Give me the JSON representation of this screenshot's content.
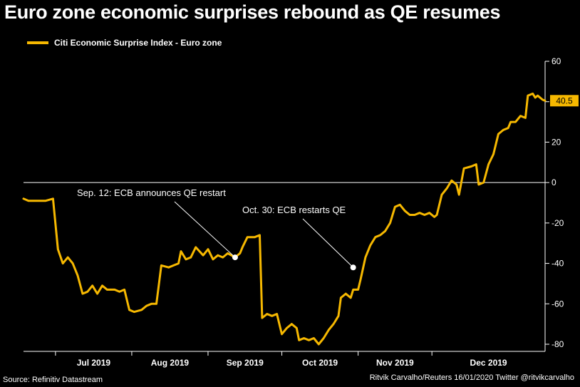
{
  "header": {
    "title": "Euro zone economic surprises rebound as QE resumes"
  },
  "legend": {
    "label": "Citi Economic Surprise Index - Euro zone"
  },
  "footer": {
    "source": "Source: Refinitiv Datastream",
    "credit": "Ritvik Carvalho/Reuters 16/01/2020 Twitter @ritvikcarvalho"
  },
  "colors": {
    "background": "#000000",
    "line": "#f6b800",
    "text": "#ffffff",
    "zero_line": "#ffffff"
  },
  "chart_data": {
    "type": "line",
    "title": "Euro zone economic surprises rebound as QE resumes",
    "xlabel": "",
    "ylabel": "",
    "ylim": [
      -80,
      60
    ],
    "yticks": [
      60,
      40,
      20,
      0,
      -20,
      -40,
      -60,
      -80
    ],
    "y_axis_side": "right",
    "grid": false,
    "reference_line": 0,
    "legend_position": "top-left",
    "xlim": [
      "2019-06-18",
      "2020-01-16"
    ],
    "xticks": [
      {
        "label": "Jul 2019",
        "date": "2019-07-01"
      },
      {
        "label": "Aug 2019",
        "date": "2019-08-01"
      },
      {
        "label": "Sep 2019",
        "date": "2019-09-01"
      },
      {
        "label": "Oct 2019",
        "date": "2019-10-01"
      },
      {
        "label": "Nov 2019",
        "date": "2019-11-01"
      },
      {
        "label": "Dec 2019",
        "date": "2019-12-01"
      }
    ],
    "series": [
      {
        "name": "Citi Economic Surprise Index - Euro zone",
        "last_value_label": "40.5",
        "points": [
          [
            "2019-06-18",
            -8
          ],
          [
            "2019-06-20",
            -9
          ],
          [
            "2019-06-27",
            -9
          ],
          [
            "2019-06-30",
            -8
          ],
          [
            "2019-07-02",
            -33
          ],
          [
            "2019-07-04",
            -40
          ],
          [
            "2019-07-06",
            -37
          ],
          [
            "2019-07-08",
            -40
          ],
          [
            "2019-07-10",
            -46
          ],
          [
            "2019-07-12",
            -55
          ],
          [
            "2019-07-14",
            -54
          ],
          [
            "2019-07-16",
            -51
          ],
          [
            "2019-07-18",
            -55
          ],
          [
            "2019-07-20",
            -51
          ],
          [
            "2019-07-22",
            -53
          ],
          [
            "2019-07-25",
            -53
          ],
          [
            "2019-07-27",
            -54
          ],
          [
            "2019-07-29",
            -53
          ],
          [
            "2019-07-31",
            -63
          ],
          [
            "2019-08-02",
            -64
          ],
          [
            "2019-08-05",
            -63
          ],
          [
            "2019-08-07",
            -61
          ],
          [
            "2019-08-09",
            -60
          ],
          [
            "2019-08-11",
            -60
          ],
          [
            "2019-08-13",
            -41
          ],
          [
            "2019-08-16",
            -42
          ],
          [
            "2019-08-18",
            -41
          ],
          [
            "2019-08-20",
            -40
          ],
          [
            "2019-08-21",
            -34
          ],
          [
            "2019-08-23",
            -38
          ],
          [
            "2019-08-25",
            -37
          ],
          [
            "2019-08-27",
            -32
          ],
          [
            "2019-08-30",
            -36
          ],
          [
            "2019-09-01",
            -33
          ],
          [
            "2019-09-03",
            -38
          ],
          [
            "2019-09-05",
            -36
          ],
          [
            "2019-09-07",
            -37
          ],
          [
            "2019-09-09",
            -35
          ],
          [
            "2019-09-12",
            -37
          ],
          [
            "2019-09-14",
            -35
          ],
          [
            "2019-09-15",
            -32
          ],
          [
            "2019-09-17",
            -27
          ],
          [
            "2019-09-20",
            -27
          ],
          [
            "2019-09-22",
            -26
          ],
          [
            "2019-09-23",
            -67
          ],
          [
            "2019-09-25",
            -65
          ],
          [
            "2019-09-27",
            -66
          ],
          [
            "2019-09-29",
            -65
          ],
          [
            "2019-10-01",
            -75
          ],
          [
            "2019-10-03",
            -72
          ],
          [
            "2019-10-05",
            -70
          ],
          [
            "2019-10-07",
            -72
          ],
          [
            "2019-10-08",
            -78
          ],
          [
            "2019-10-10",
            -77
          ],
          [
            "2019-10-12",
            -78
          ],
          [
            "2019-10-14",
            -77
          ],
          [
            "2019-10-16",
            -80
          ],
          [
            "2019-10-18",
            -77
          ],
          [
            "2019-10-20",
            -73
          ],
          [
            "2019-10-22",
            -70
          ],
          [
            "2019-10-24",
            -66
          ],
          [
            "2019-10-25",
            -57
          ],
          [
            "2019-10-27",
            -55
          ],
          [
            "2019-10-29",
            -57
          ],
          [
            "2019-10-30",
            -53
          ],
          [
            "2019-11-01",
            -53
          ],
          [
            "2019-11-02",
            -48
          ],
          [
            "2019-11-04",
            -37
          ],
          [
            "2019-11-06",
            -31
          ],
          [
            "2019-11-08",
            -27
          ],
          [
            "2019-11-10",
            -26
          ],
          [
            "2019-11-12",
            -24
          ],
          [
            "2019-11-14",
            -20
          ],
          [
            "2019-11-16",
            -12
          ],
          [
            "2019-11-18",
            -11
          ],
          [
            "2019-11-20",
            -14
          ],
          [
            "2019-11-22",
            -16
          ],
          [
            "2019-11-24",
            -16
          ],
          [
            "2019-11-26",
            -15
          ],
          [
            "2019-11-28",
            -16
          ],
          [
            "2019-11-30",
            -15
          ],
          [
            "2019-12-02",
            -17
          ],
          [
            "2019-12-03",
            -16
          ],
          [
            "2019-12-05",
            -6
          ],
          [
            "2019-12-07",
            -3
          ],
          [
            "2019-12-09",
            1
          ],
          [
            "2019-12-11",
            -1
          ],
          [
            "2019-12-12",
            -6
          ],
          [
            "2019-12-14",
            7
          ],
          [
            "2019-12-17",
            8
          ],
          [
            "2019-12-19",
            9
          ],
          [
            "2019-12-20",
            -1
          ],
          [
            "2019-12-22",
            0
          ],
          [
            "2019-12-24",
            9
          ],
          [
            "2019-12-26",
            14
          ],
          [
            "2019-12-28",
            24
          ],
          [
            "2019-12-30",
            26
          ],
          [
            "2020-01-01",
            27
          ],
          [
            "2020-01-02",
            30
          ],
          [
            "2020-01-04",
            30
          ],
          [
            "2020-01-06",
            33
          ],
          [
            "2020-01-08",
            32
          ],
          [
            "2020-01-09",
            43
          ],
          [
            "2020-01-11",
            44
          ],
          [
            "2020-01-12",
            42
          ],
          [
            "2020-01-13",
            43
          ],
          [
            "2020-01-15",
            41
          ],
          [
            "2020-01-16",
            40.5
          ]
        ]
      }
    ],
    "annotations": [
      {
        "text": "Sep. 12: ECB announces QE restart",
        "date": "2019-09-12",
        "value": -37
      },
      {
        "text": "Oct. 30: ECB restarts QE",
        "date": "2019-10-30",
        "value": -42
      }
    ]
  }
}
